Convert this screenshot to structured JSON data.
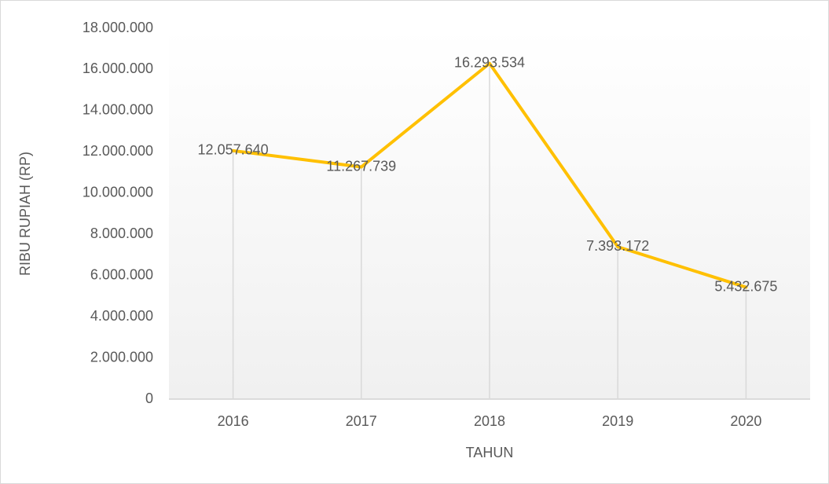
{
  "chart_data": {
    "type": "line",
    "y_label": "RIBU RUPIAH (RP)",
    "x_label": "TAHUN",
    "categories": [
      "2016",
      "2017",
      "2018",
      "2019",
      "2020"
    ],
    "values": [
      12057640,
      11267739,
      16293534,
      7393172,
      5432675
    ],
    "value_labels": [
      "12.057.640",
      "11.267.739",
      "16.293.534",
      "7.393.172",
      "5.432.675"
    ],
    "color": "#ffc000",
    "drop_lines": true,
    "ylim": [
      0,
      18000000
    ],
    "yticks": [
      0,
      {
        "value": 2000000,
        "label": "2.000.000"
      },
      {
        "value": 4000000,
        "label": "4.000.000"
      },
      {
        "value": 6000000,
        "label": "6.000.000"
      },
      {
        "value": 8000000,
        "label": "8.000.000"
      },
      {
        "value": 10000000,
        "label": "10.000.000"
      },
      {
        "value": 12000000,
        "label": "12.000.000"
      },
      {
        "value": 14000000,
        "label": "14.000.000"
      },
      {
        "value": 16000000,
        "label": "16.000.000"
      },
      {
        "value": 18000000,
        "label": "18.000.000"
      }
    ]
  }
}
